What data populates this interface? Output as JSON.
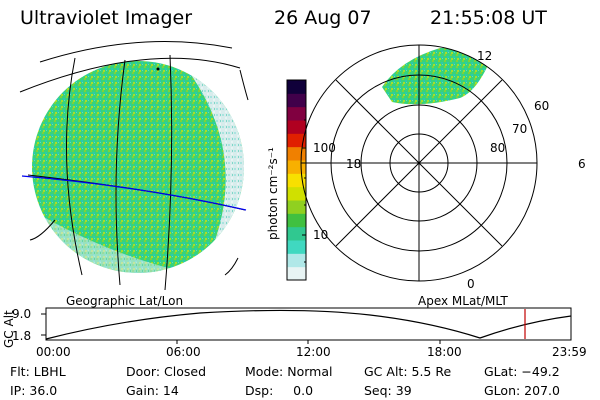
{
  "header": {
    "title": "Ultraviolet Imager",
    "date": "26 Aug 07",
    "time": "21:55:08 UT"
  },
  "panels": {
    "geographic_label": "Geographic Lat/Lon",
    "apex_label": "Apex MLat/MLT"
  },
  "colorbar": {
    "unit_label": "photon cm⁻²s⁻¹",
    "ticks": [
      "100",
      "10"
    ],
    "colors": [
      "#e8f4f4",
      "#b0e8e8",
      "#40d8c0",
      "#30c890",
      "#40c040",
      "#90d020",
      "#d0e000",
      "#f8e000",
      "#f8b000",
      "#f08000",
      "#e02000",
      "#b00020",
      "#800040",
      "#40004a",
      "#10003a"
    ]
  },
  "polar": {
    "mlt_labels": [
      "12",
      "18",
      "6",
      "0"
    ],
    "lat_labels": [
      "60",
      "70",
      "80"
    ]
  },
  "altitude_strip": {
    "axis_label": "GC Alt",
    "y_ticks": [
      "9.0",
      "1.8"
    ],
    "x_ticks": [
      "00:00",
      "06:00",
      "12:00",
      "18:00",
      "23:59"
    ],
    "current_marker_color": "#c00000"
  },
  "status": {
    "flt": "Flt: LBHL",
    "ip": "IP: 36.0",
    "door": "Door: Closed",
    "gain": "Gain: 14",
    "mode": "Mode: Normal",
    "dsp": "Dsp:     0.0",
    "gc_alt": "GC Alt: 5.5 Re",
    "seq": "Seq: 39",
    "glat": "GLat: −49.2",
    "glon": "GLon: 207.0"
  }
}
